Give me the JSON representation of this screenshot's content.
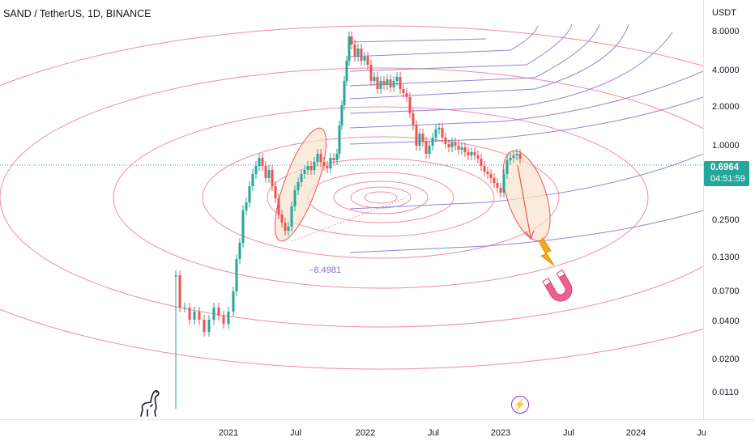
{
  "header": {
    "title": "SAND / TetherUS, 1D, BINANCE"
  },
  "price_axis": {
    "currency": "USDT",
    "ticks": [
      "8.0000",
      "4.0000",
      "2.0000",
      "1.0000",
      "0.2500",
      "0.1300",
      "0.0700",
      "0.0400",
      "0.0200",
      "0.0110"
    ]
  },
  "time_axis": {
    "ticks": [
      "2021",
      "Jul",
      "2022",
      "Jul",
      "2023",
      "Jul",
      "2024",
      "Ju"
    ]
  },
  "last_price": {
    "value": "0.6964",
    "countdown": "04:51:59",
    "color": "#26a69a"
  },
  "measure": {
    "label": "−8.4981"
  },
  "colors": {
    "red_circles": "#f28ba0",
    "purple_arcs": "#8f85d6",
    "up": "#26a69a",
    "down": "#ef5350",
    "highlight": "#f9e2cf"
  },
  "icons": {
    "logo": "dinosaur-logo-icon",
    "events": "lightning-event-icon",
    "sticker": "magnet-sticker-icon"
  }
}
